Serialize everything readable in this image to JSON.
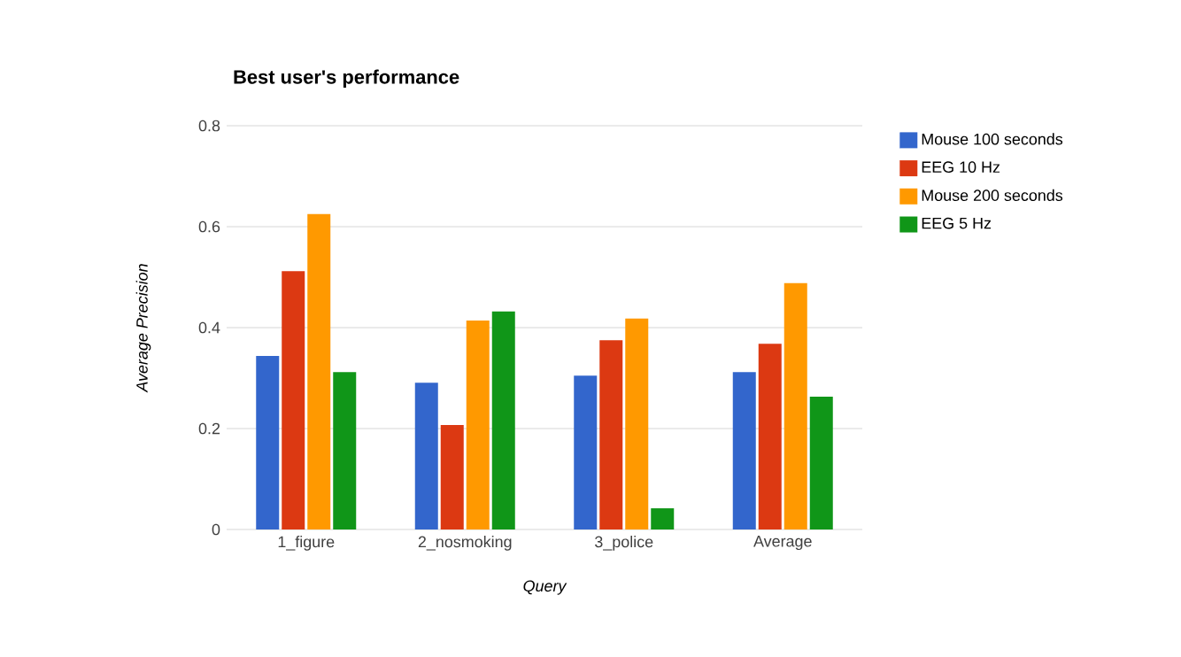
{
  "chart_data": {
    "type": "bar",
    "title": "Best user's performance",
    "xlabel": "Query",
    "ylabel": "Average Precision",
    "categories": [
      "1_figure",
      "2_nosmoking",
      "3_police",
      "Average"
    ],
    "series": [
      {
        "name": "Mouse 100 seconds",
        "color": "#3366cc",
        "values": [
          0.344,
          0.291,
          0.305,
          0.312
        ]
      },
      {
        "name": "EEG 10 Hz",
        "color": "#dc3912",
        "values": [
          0.512,
          0.207,
          0.375,
          0.368
        ]
      },
      {
        "name": "Mouse 200 seconds",
        "color": "#ff9900",
        "values": [
          0.625,
          0.414,
          0.418,
          0.488
        ]
      },
      {
        "name": "EEG 5 Hz",
        "color": "#109618",
        "values": [
          0.312,
          0.432,
          0.042,
          0.263
        ]
      }
    ],
    "ylim": [
      0,
      0.8
    ],
    "yticks": [
      0,
      0.2,
      0.4,
      0.6,
      0.8
    ],
    "grid": "y",
    "legend": "right"
  }
}
